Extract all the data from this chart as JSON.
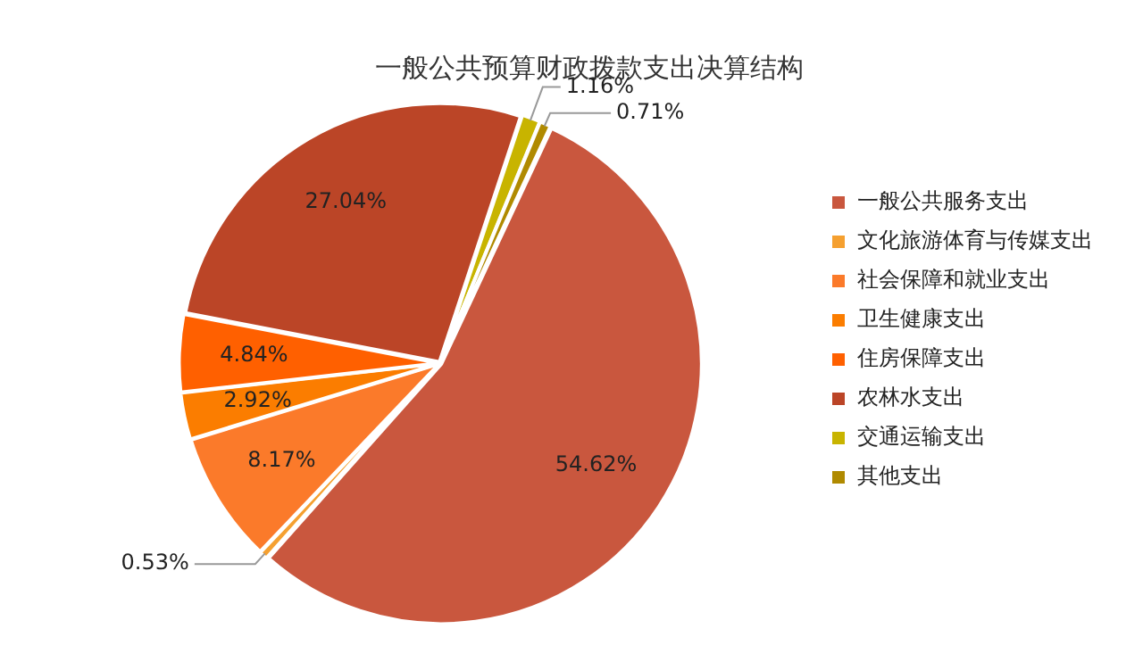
{
  "chart_data": {
    "type": "pie",
    "title": "一般公共预算财政拨款支出决算结构",
    "categories": [
      "一般公共服务支出",
      "文化旅游体育与传媒支出",
      "社会保障和就业支出",
      "卫生健康支出",
      "住房保障支出",
      "农林水支出",
      "交通运输支出",
      "其他支出"
    ],
    "values": [
      54.62,
      0.53,
      8.17,
      2.92,
      4.84,
      27.04,
      1.16,
      0.71
    ],
    "value_labels": [
      "54.62%",
      "0.53%",
      "8.17%",
      "2.92%",
      "4.84%",
      "27.04%",
      "1.16%",
      "0.71%"
    ],
    "colors": [
      "#c9573e",
      "#f5a030",
      "#fb7a2a",
      "#fb7d00",
      "#ff6000",
      "#bb4527",
      "#c8b400",
      "#b08a00"
    ],
    "legend": "right"
  }
}
